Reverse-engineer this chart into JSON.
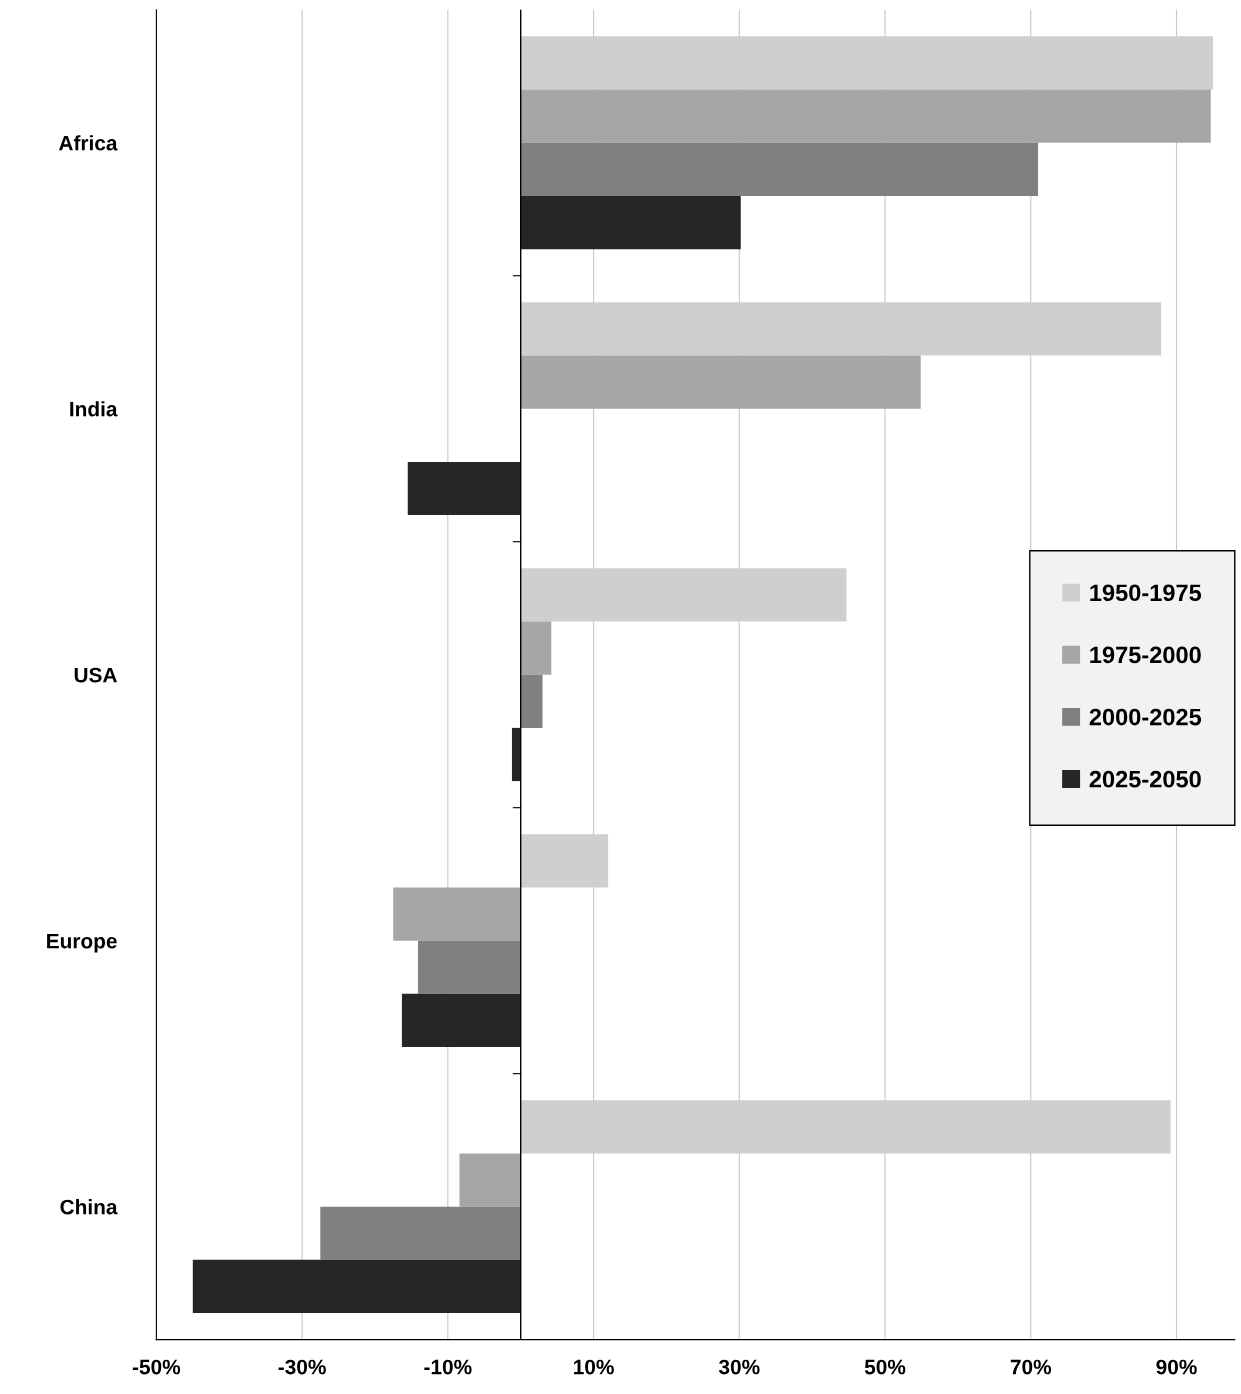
{
  "chart_data": {
    "type": "bar",
    "orientation": "horizontal",
    "categories": [
      "Africa",
      "India",
      "USA",
      "Europe",
      "China"
    ],
    "series": [
      {
        "name": "1950-1975",
        "color": "#d0cfd0",
        "values": [
          95.0,
          87.9,
          44.7,
          12.0,
          89.2
        ]
      },
      {
        "name": "1975-2000",
        "color": "#a6a6a6",
        "values": [
          94.7,
          54.9,
          4.2,
          -17.5,
          -8.4
        ]
      },
      {
        "name": "2000-2025",
        "color": "#808080",
        "values": [
          71.0,
          null,
          3.0,
          -14.1,
          -27.5
        ]
      },
      {
        "name": "2025-2050",
        "color": "#262626",
        "values": [
          30.2,
          -15.5,
          -1.2,
          -16.3,
          -45.0
        ]
      }
    ],
    "xlim": [
      -50,
      98
    ],
    "xticks": [
      {
        "value": -50,
        "label": "-50%"
      },
      {
        "value": -30,
        "label": "-30%"
      },
      {
        "value": -10,
        "label": "-10%"
      },
      {
        "value": 10,
        "label": "10%"
      },
      {
        "value": 30,
        "label": "30%"
      },
      {
        "value": 50,
        "label": "50%"
      },
      {
        "value": 70,
        "label": "70%"
      },
      {
        "value": 90,
        "label": "90%"
      }
    ],
    "grid": "x",
    "legend": "right"
  }
}
